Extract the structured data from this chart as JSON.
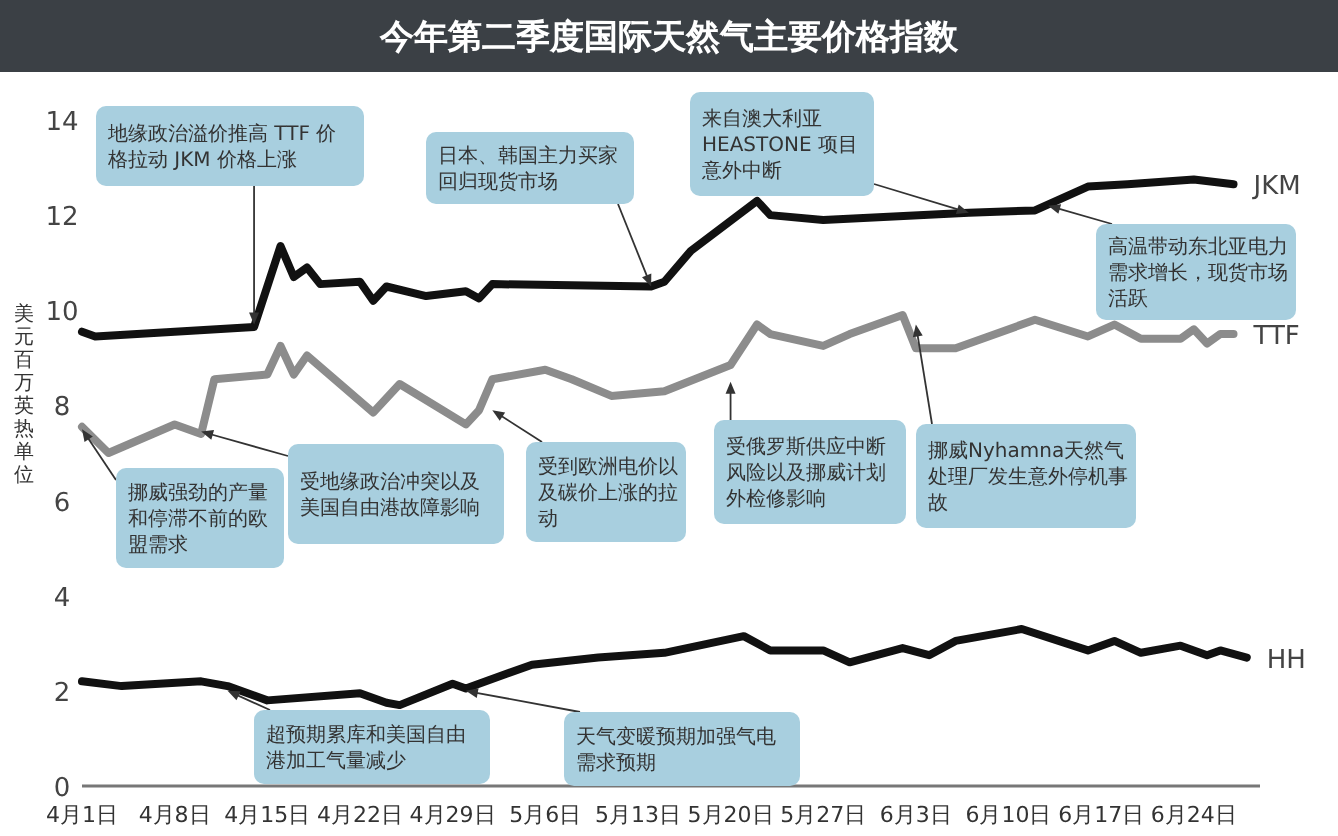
{
  "chart_data": {
    "type": "line",
    "title": "今年第二季度国际天然气主要价格指数",
    "ylabel": "美元百万英热单位",
    "xlim": [
      "--04-01",
      "--06-29"
    ],
    "ylim": [
      0,
      14
    ],
    "yticks": [
      0,
      2,
      4,
      6,
      8,
      10,
      12,
      14
    ],
    "xticks": [
      {
        "value": "--04-01",
        "label": "4月1日"
      },
      {
        "value": "--04-08",
        "label": "4月8日"
      },
      {
        "value": "--04-15",
        "label": "4月15日"
      },
      {
        "value": "--04-22",
        "label": "4月22日"
      },
      {
        "value": "--04-29",
        "label": "4月29日"
      },
      {
        "value": "--05-06",
        "label": "5月6日"
      },
      {
        "value": "--05-13",
        "label": "5月13日"
      },
      {
        "value": "--05-20",
        "label": "5月20日"
      },
      {
        "value": "--05-27",
        "label": "5月27日"
      },
      {
        "value": "--06-03",
        "label": "6月3日"
      },
      {
        "value": "--06-10",
        "label": "6月10日"
      },
      {
        "value": "--06-17",
        "label": "6月17日"
      },
      {
        "value": "--06-24",
        "label": "6月24日"
      }
    ],
    "series": [
      {
        "name": "JKM",
        "color": "#111111",
        "x": [
          "--04-01",
          "--04-02",
          "--04-14",
          "--04-16",
          "--04-17",
          "--04-18",
          "--04-19",
          "--04-22",
          "--04-23",
          "--04-24",
          "--04-27",
          "--04-30",
          "--05-01",
          "--05-02",
          "--05-14",
          "--05-15",
          "--05-17",
          "--05-22",
          "--05-23",
          "--05-27",
          "--06-07",
          "--06-12",
          "--06-16",
          "--06-19",
          "--06-24",
          "--06-27"
        ],
        "values": [
          9.55,
          9.45,
          9.65,
          11.35,
          10.7,
          10.9,
          10.55,
          10.6,
          10.2,
          10.5,
          10.3,
          10.4,
          10.25,
          10.55,
          10.5,
          10.6,
          11.25,
          12.3,
          12.0,
          11.9,
          12.05,
          12.1,
          12.6,
          12.65,
          12.75,
          12.65
        ]
      },
      {
        "name": "TTF",
        "color": "#8c8c8c",
        "x": [
          "--04-01",
          "--04-03",
          "--04-08",
          "--04-10",
          "--04-11",
          "--04-15",
          "--04-16",
          "--04-17",
          "--04-18",
          "--04-23",
          "--04-25",
          "--04-30",
          "--05-01",
          "--05-02",
          "--05-06",
          "--05-08",
          "--05-11",
          "--05-15",
          "--05-20",
          "--05-22",
          "--05-23",
          "--05-27",
          "--05-29",
          "--06-02",
          "--06-03",
          "--06-06",
          "--06-12",
          "--06-16",
          "--06-18",
          "--06-20",
          "--06-23",
          "--06-24",
          "--06-25",
          "--06-26",
          "--06-27"
        ],
        "values": [
          7.55,
          7.0,
          7.6,
          7.4,
          8.55,
          8.65,
          9.25,
          8.65,
          9.05,
          7.85,
          8.45,
          7.6,
          7.9,
          8.55,
          8.75,
          8.55,
          8.2,
          8.3,
          8.85,
          9.7,
          9.5,
          9.25,
          9.5,
          9.9,
          9.2,
          9.2,
          9.8,
          9.45,
          9.7,
          9.4,
          9.4,
          9.6,
          9.3,
          9.5,
          9.5
        ]
      },
      {
        "name": "HH",
        "color": "#111111",
        "x": [
          "--04-01",
          "--04-04",
          "--04-10",
          "--04-12",
          "--04-15",
          "--04-22",
          "--04-24",
          "--04-25",
          "--04-29",
          "--04-30",
          "--05-05",
          "--05-10",
          "--05-15",
          "--05-21",
          "--05-23",
          "--05-27",
          "--05-29",
          "--06-02",
          "--06-04",
          "--06-06",
          "--06-11",
          "--06-16",
          "--06-18",
          "--06-20",
          "--06-23",
          "--06-25",
          "--06-26",
          "--06-28"
        ],
        "values": [
          2.2,
          2.1,
          2.2,
          2.1,
          1.8,
          1.95,
          1.75,
          1.7,
          2.15,
          2.05,
          2.55,
          2.7,
          2.8,
          3.15,
          2.85,
          2.85,
          2.6,
          2.9,
          2.75,
          3.05,
          3.3,
          2.85,
          3.05,
          2.8,
          2.95,
          2.75,
          2.85,
          2.7
        ]
      }
    ],
    "annotations": [
      {
        "text": "地缘政治溢价推高 TTF 价格拉动 JKM 价格上涨",
        "x": "--04-14",
        "y": 9.7
      },
      {
        "text": "日本、韩国主力买家回归现货市场",
        "x": "--05-14",
        "y": 10.5
      },
      {
        "text": "来自澳大利亚 HEASTONE 项目意外中断",
        "x": "--06-07",
        "y": 12.05
      },
      {
        "text": "高温带动东北亚电力需求增长，现货市场活跃",
        "x": "--06-13",
        "y": 12.2
      },
      {
        "text": "挪威强劲的产量和停滞不前的欧盟需求",
        "x": "--04-01",
        "y": 7.5
      },
      {
        "text": "受地缘政治冲突以及美国自由港故障影响",
        "x": "--04-10",
        "y": 7.45
      },
      {
        "text": "受到欧洲电价以及碳价上涨的拉动",
        "x": "--05-02",
        "y": 7.9
      },
      {
        "text": "受俄罗斯供应中断风险以及挪威计划外检修影响",
        "x": "--05-20",
        "y": 8.5
      },
      {
        "text": "挪威Nyhamna天然气处理厂发生意外停机事故",
        "x": "--06-03",
        "y": 9.7
      },
      {
        "text": "超预期累库和美国自由港加工气量减少",
        "x": "--04-12",
        "y": 2.0
      },
      {
        "text": "天气变暖预期加强气电需求预期",
        "x": "--04-30",
        "y": 2.0
      }
    ]
  }
}
